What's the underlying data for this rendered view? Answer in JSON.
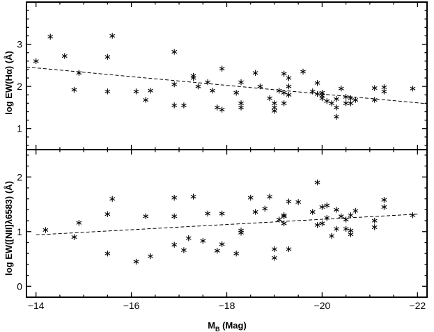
{
  "chart_data": {
    "type": "scatter",
    "xlabel": "M_B (Mag)",
    "xlabel_main": "M",
    "xlabel_sub": "B",
    "xlabel_rest": " (Mag)",
    "x_ticks": [
      -14,
      -16,
      -18,
      -20,
      -22
    ],
    "x_tick_labels": [
      "−14",
      "−16",
      "−18",
      "−20",
      "−22"
    ],
    "xlim": [
      -13.8,
      -22.2
    ],
    "panels": [
      {
        "name": "top",
        "ylabel": "log EW(Hα) (Å)",
        "ylim": [
          0.5,
          4.0
        ],
        "y_ticks": [
          1,
          2,
          3
        ],
        "y_tick_labels": [
          "1",
          "2",
          "3"
        ],
        "fit": {
          "x": [
            -13.8,
            -22.2
          ],
          "y": [
            2.46,
            1.59
          ]
        },
        "points": {
          "x": [
            -14.0,
            -14.3,
            -14.6,
            -14.8,
            -14.9,
            -15.5,
            -15.5,
            -15.6,
            -16.1,
            -16.3,
            -16.4,
            -16.9,
            -16.9,
            -16.9,
            -17.1,
            -17.3,
            -17.3,
            -17.4,
            -17.6,
            -17.7,
            -17.8,
            -17.9,
            -17.9,
            -18.2,
            -18.3,
            -18.3,
            -18.3,
            -18.6,
            -18.7,
            -18.9,
            -19.0,
            -19.0,
            -19.0,
            -19.1,
            -19.2,
            -19.2,
            -19.2,
            -19.3,
            -19.3,
            -19.3,
            -19.6,
            -19.8,
            -19.9,
            -19.9,
            -20.0,
            -20.0,
            -20.0,
            -20.1,
            -20.2,
            -20.3,
            -20.3,
            -20.3,
            -20.4,
            -20.5,
            -20.5,
            -20.6,
            -20.6,
            -20.7,
            -21.1,
            -21.1,
            -21.3,
            -21.3,
            -21.9
          ],
          "y": [
            2.6,
            3.18,
            2.72,
            1.92,
            2.32,
            2.7,
            1.88,
            3.2,
            1.88,
            1.68,
            1.9,
            2.82,
            2.05,
            1.55,
            1.55,
            2.25,
            2.2,
            2.0,
            2.1,
            1.9,
            1.5,
            2.42,
            1.45,
            1.85,
            2.1,
            1.6,
            1.5,
            2.32,
            2.0,
            1.72,
            1.6,
            1.5,
            1.42,
            1.9,
            2.3,
            1.85,
            1.6,
            2.2,
            2.0,
            1.8,
            2.35,
            1.88,
            2.08,
            1.82,
            1.85,
            1.78,
            1.72,
            1.65,
            1.6,
            1.7,
            1.5,
            1.28,
            1.95,
            1.6,
            1.75,
            1.72,
            1.6,
            1.68,
            1.96,
            1.68,
            1.98,
            1.88,
            1.95
          ]
        }
      },
      {
        "name": "bottom",
        "ylabel": "log EW([NII]λ6583) (Å)",
        "ylim": [
          -0.2,
          2.5
        ],
        "y_ticks": [
          0,
          1,
          2
        ],
        "y_tick_labels": [
          "0",
          "1",
          "2"
        ],
        "fit": {
          "x": [
            -14.0,
            -22.0
          ],
          "y": [
            0.94,
            1.32
          ]
        },
        "points": {
          "x": [
            -14.2,
            -14.8,
            -14.9,
            -15.5,
            -15.5,
            -15.6,
            -16.1,
            -16.3,
            -16.4,
            -16.9,
            -16.9,
            -16.9,
            -17.1,
            -17.2,
            -17.3,
            -17.5,
            -17.6,
            -17.8,
            -17.9,
            -17.9,
            -18.2,
            -18.3,
            -18.3,
            -18.5,
            -18.6,
            -18.8,
            -18.9,
            -19.0,
            -19.0,
            -19.1,
            -19.2,
            -19.2,
            -19.2,
            -19.3,
            -19.3,
            -19.5,
            -19.8,
            -19.9,
            -19.9,
            -20.0,
            -20.0,
            -20.1,
            -20.1,
            -20.2,
            -20.3,
            -20.3,
            -20.4,
            -20.5,
            -20.5,
            -20.6,
            -20.6,
            -20.6,
            -20.7,
            -21.1,
            -21.1,
            -21.3,
            -21.3,
            -21.9
          ],
          "y": [
            1.03,
            0.9,
            1.16,
            1.32,
            0.6,
            1.6,
            0.45,
            1.28,
            0.55,
            1.62,
            1.28,
            0.76,
            0.66,
            0.88,
            1.64,
            0.83,
            1.33,
            0.65,
            1.33,
            0.77,
            0.6,
            0.98,
            1.02,
            1.62,
            1.36,
            1.42,
            1.64,
            0.68,
            0.52,
            1.22,
            1.3,
            1.28,
            1.15,
            1.55,
            0.68,
            1.54,
            1.36,
            1.12,
            1.9,
            1.45,
            1.15,
            1.48,
            1.25,
            0.92,
            1.4,
            1.05,
            1.28,
            1.22,
            1.05,
            1.3,
            1.02,
            0.95,
            1.38,
            1.2,
            1.08,
            1.58,
            1.45,
            1.3
          ]
        }
      }
    ],
    "grid": false,
    "legend": "none"
  }
}
